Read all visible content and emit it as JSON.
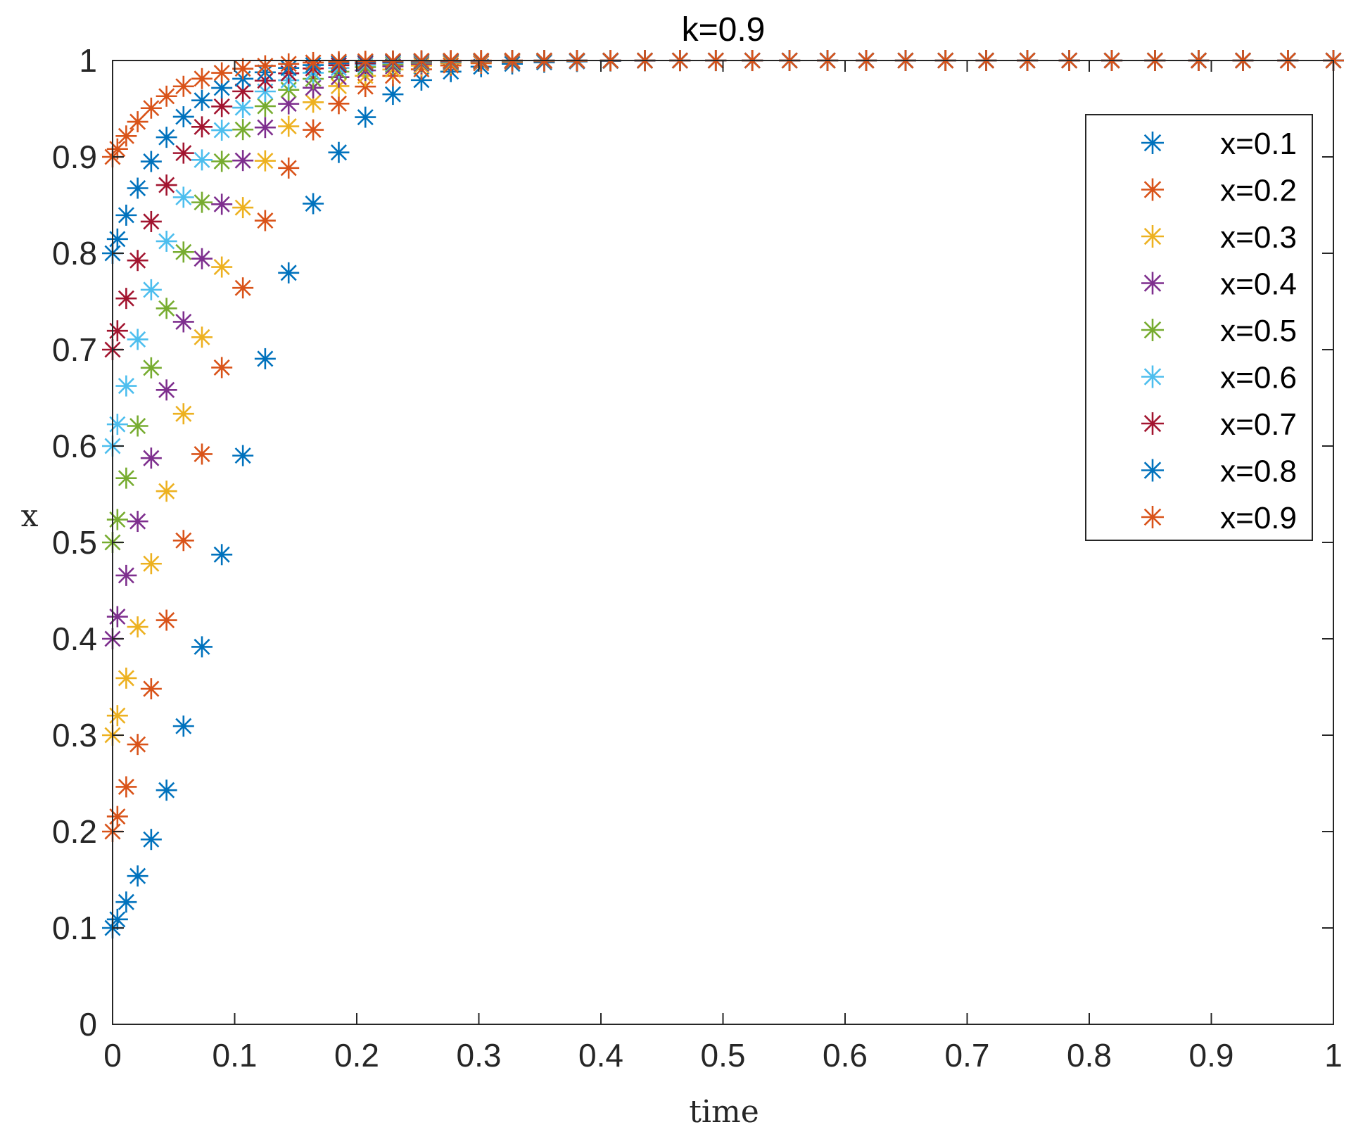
{
  "chart_data": {
    "type": "scatter",
    "title": "k=0.9",
    "xlabel": "time",
    "ylabel": "x",
    "xlim": [
      0,
      1
    ],
    "ylim": [
      0,
      1
    ],
    "xticks": [
      "0",
      "0.1",
      "0.2",
      "0.3",
      "0.4",
      "0.5",
      "0.6",
      "0.7",
      "0.8",
      "0.9",
      "1"
    ],
    "yticks": [
      "0",
      "0.1",
      "0.2",
      "0.3",
      "0.4",
      "0.5",
      "0.6",
      "0.7",
      "0.8",
      "0.9",
      "1"
    ],
    "grid": false,
    "legend_position": "top-right",
    "marker": "asterisk",
    "k": 0.9,
    "series": [
      {
        "name": "x=0.1",
        "x0": 0.1,
        "color": "#0072BD"
      },
      {
        "name": "x=0.2",
        "x0": 0.2,
        "color": "#D95319"
      },
      {
        "name": "x=0.3",
        "x0": 0.3,
        "color": "#EDB120"
      },
      {
        "name": "x=0.4",
        "x0": 0.4,
        "color": "#7E2F8E"
      },
      {
        "name": "x=0.5",
        "x0": 0.5,
        "color": "#77AC30"
      },
      {
        "name": "x=0.6",
        "x0": 0.6,
        "color": "#4DBEEE"
      },
      {
        "name": "x=0.7",
        "x0": 0.7,
        "color": "#A2142F"
      },
      {
        "name": "x=0.8",
        "x0": 0.8,
        "color": "#0072BD"
      },
      {
        "name": "x=0.9",
        "x0": 0.9,
        "color": "#D95319"
      }
    ]
  }
}
